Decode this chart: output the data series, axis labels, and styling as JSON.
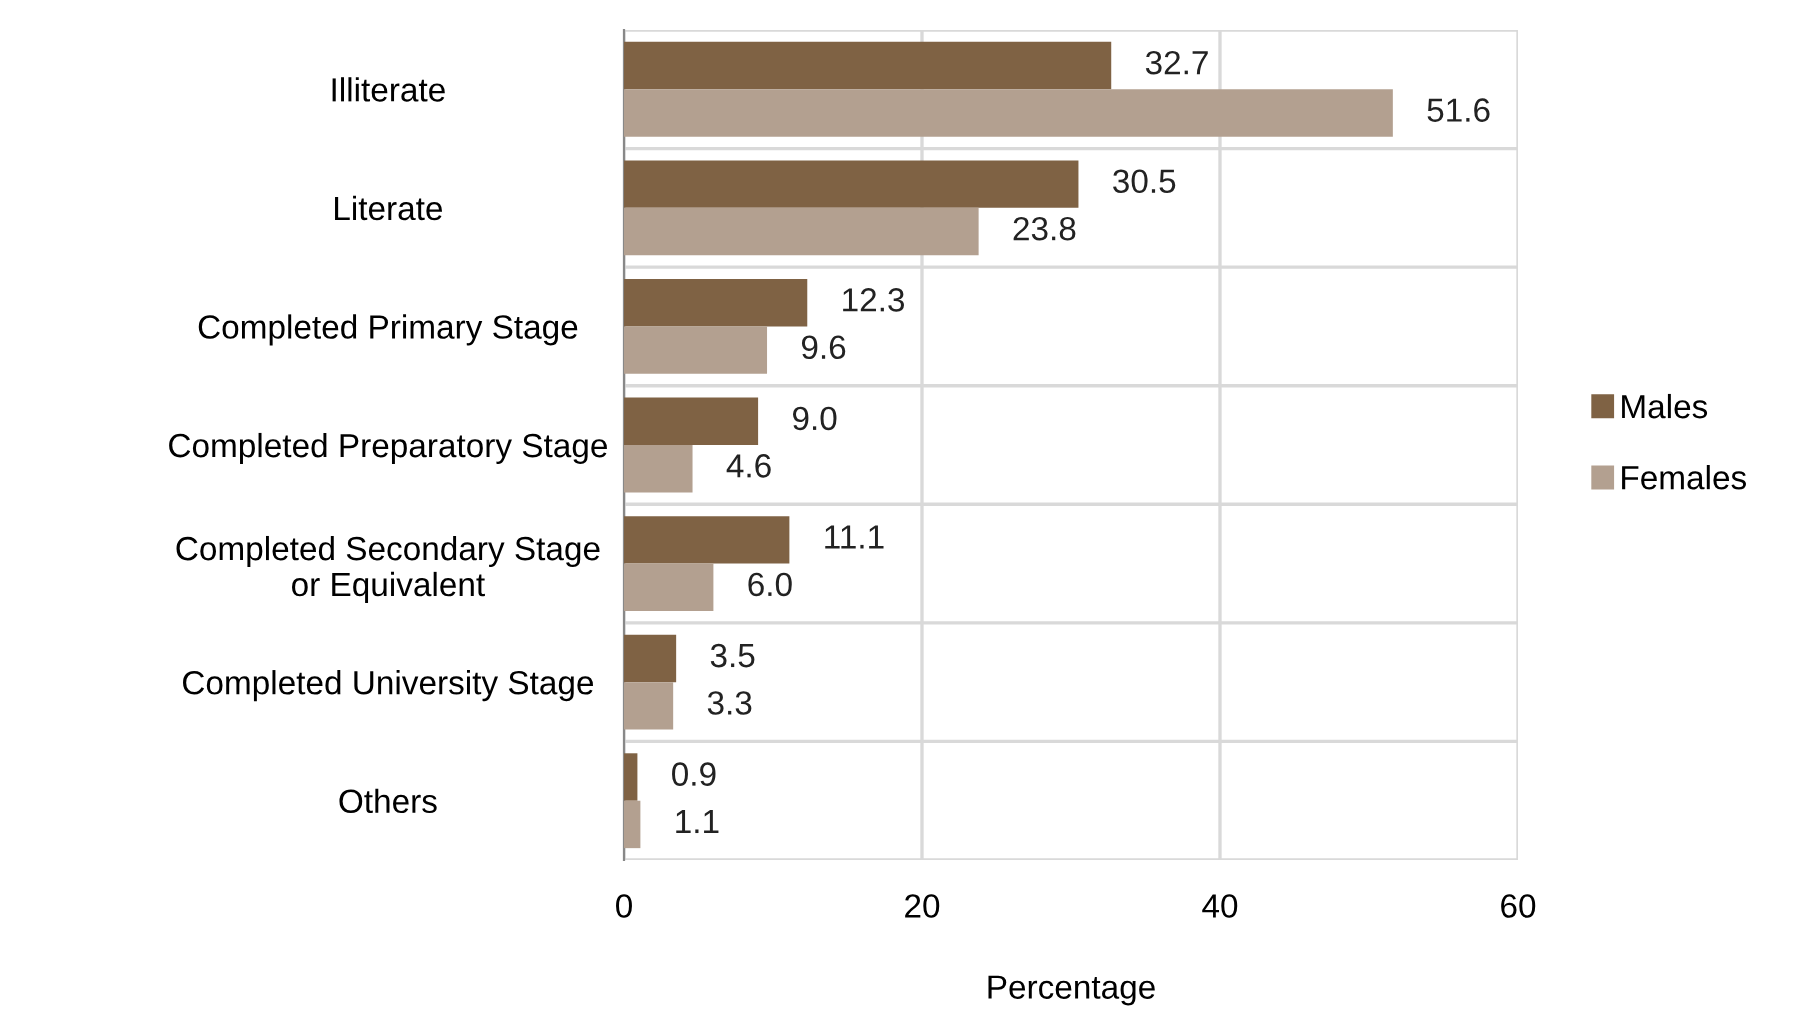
{
  "chart_data": {
    "type": "bar",
    "orientation": "horizontal",
    "xlabel": "Percentage",
    "categories": [
      "Illiterate",
      "Literate",
      "Completed Primary Stage",
      "Completed Preparatory Stage",
      "Completed Secondary Stage\nor Equivalent",
      "Completed University Stage",
      "Others"
    ],
    "series": [
      {
        "name": "Males",
        "color": "#7f6244",
        "values": [
          32.7,
          30.5,
          12.3,
          9.0,
          11.1,
          3.5,
          0.9
        ],
        "value_labels": [
          "32.7",
          "30.5",
          "12.3",
          "9.0",
          "11.1",
          "3.5",
          "0.9"
        ]
      },
      {
        "name": "Females",
        "color": "#b3a090",
        "values": [
          51.6,
          23.8,
          9.6,
          4.6,
          6.0,
          3.3,
          1.1
        ],
        "value_labels": [
          "51.6",
          "23.8",
          "9.6",
          "4.6",
          "6.0",
          "3.3",
          "1.1"
        ]
      }
    ],
    "xlim": [
      0,
      60
    ],
    "xticks": [
      0,
      20,
      40,
      60
    ],
    "grid": true,
    "legend": "right"
  }
}
